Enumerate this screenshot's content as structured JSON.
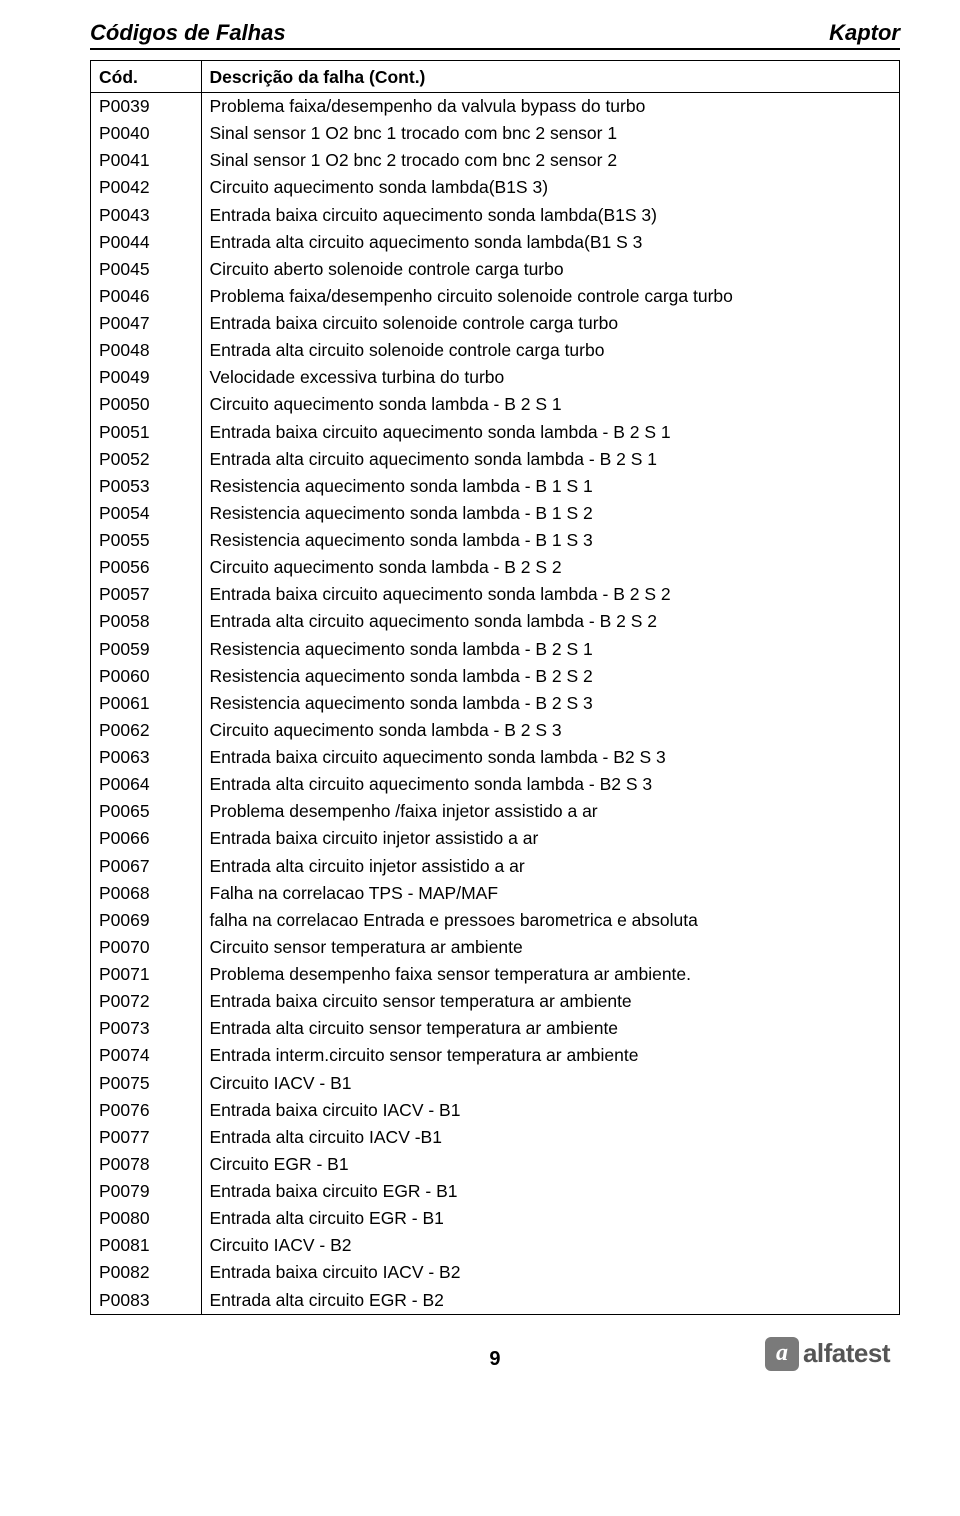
{
  "header": {
    "left": "Códigos de Falhas",
    "right": "Kaptor"
  },
  "table": {
    "columns": [
      "Cód.",
      "Descrição da falha (Cont.)"
    ],
    "rows": [
      [
        "P0039",
        "Problema faixa/desempenho da valvula bypass do turbo"
      ],
      [
        "P0040",
        "Sinal sensor 1 O2 bnc 1 trocado com bnc 2 sensor 1"
      ],
      [
        "P0041",
        "Sinal sensor 1 O2 bnc 2 trocado com bnc 2 sensor 2"
      ],
      [
        "P0042",
        "Circuito aquecimento sonda lambda(B1S 3)"
      ],
      [
        "P0043",
        "Entrada baixa circuito aquecimento sonda lambda(B1S 3)"
      ],
      [
        "P0044",
        "Entrada alta circuito aquecimento sonda lambda(B1 S 3"
      ],
      [
        "P0045",
        "Circuito aberto solenoide controle carga turbo"
      ],
      [
        "P0046",
        "Problema faixa/desempenho circuito solenoide controle carga turbo"
      ],
      [
        "P0047",
        "Entrada baixa circuito solenoide controle carga turbo"
      ],
      [
        "P0048",
        "Entrada alta circuito solenoide controle carga turbo"
      ],
      [
        "P0049",
        "Velocidade excessiva turbina do turbo"
      ],
      [
        "P0050",
        "Circuito aquecimento sonda lambda - B 2 S 1"
      ],
      [
        "P0051",
        "Entrada baixa circuito aquecimento sonda lambda - B 2 S 1"
      ],
      [
        "P0052",
        "Entrada alta circuito aquecimento sonda lambda - B 2 S 1"
      ],
      [
        "P0053",
        "Resistencia aquecimento sonda lambda - B 1 S 1"
      ],
      [
        "P0054",
        "Resistencia aquecimento sonda lambda - B 1 S 2"
      ],
      [
        "P0055",
        "Resistencia aquecimento sonda lambda - B 1 S 3"
      ],
      [
        "P0056",
        "Circuito aquecimento sonda lambda - B 2 S 2"
      ],
      [
        "P0057",
        "Entrada baixa circuito aquecimento sonda lambda - B 2 S 2"
      ],
      [
        "P0058",
        "Entrada alta circuito aquecimento sonda lambda - B 2 S 2"
      ],
      [
        "P0059",
        "Resistencia aquecimento sonda lambda - B 2 S 1"
      ],
      [
        "P0060",
        "Resistencia aquecimento sonda lambda - B 2 S 2"
      ],
      [
        "P0061",
        "Resistencia aquecimento sonda lambda - B 2 S 3"
      ],
      [
        "P0062",
        "Circuito aquecimento sonda lambda - B 2 S 3"
      ],
      [
        "P0063",
        "Entrada baixa circuito aquecimento sonda lambda - B2 S 3"
      ],
      [
        "P0064",
        "Entrada alta circuito aquecimento sonda lambda - B2 S 3"
      ],
      [
        "P0065",
        "Problema desempenho /faixa injetor assistido a ar"
      ],
      [
        "P0066",
        "Entrada baixa circuito injetor assistido a ar"
      ],
      [
        "P0067",
        "Entrada alta circuito injetor assistido a ar"
      ],
      [
        "P0068",
        "Falha na correlacao TPS - MAP/MAF"
      ],
      [
        "P0069",
        "falha na correlacao Entrada e pressoes barometrica e absoluta"
      ],
      [
        "P0070",
        "Circuito sensor temperatura ar ambiente"
      ],
      [
        "P0071",
        "Problema desempenho faixa sensor temperatura ar ambiente."
      ],
      [
        "P0072",
        "Entrada baixa circuito sensor temperatura ar ambiente"
      ],
      [
        "P0073",
        "Entrada alta circuito sensor temperatura ar ambiente"
      ],
      [
        "P0074",
        "Entrada interm.circuito sensor temperatura ar ambiente"
      ],
      [
        "P0075",
        "Circuito IACV - B1"
      ],
      [
        "P0076",
        "Entrada baixa circuito IACV - B1"
      ],
      [
        "P0077",
        "Entrada alta circuito IACV -B1"
      ],
      [
        "P0078",
        "Circuito EGR - B1"
      ],
      [
        "P0079",
        "Entrada baixa circuito EGR - B1"
      ],
      [
        "P0080",
        "Entrada alta circuito EGR - B1"
      ],
      [
        "P0081",
        "Circuito IACV - B2"
      ],
      [
        "P0082",
        "Entrada baixa circuito IACV - B2"
      ],
      [
        "P0083",
        "Entrada alta circuito EGR - B2"
      ]
    ]
  },
  "footer": {
    "page": "9",
    "logo_letter": "a",
    "logo_text": "alfatest"
  }
}
